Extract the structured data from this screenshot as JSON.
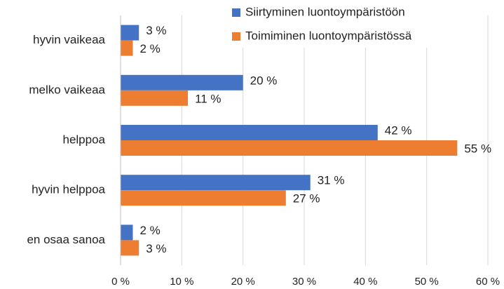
{
  "chart_data": {
    "type": "barh",
    "categories": [
      "hyvin vaikeaa",
      "melko vaikeaa",
      "helppoa",
      "hyvin helppoa",
      "en osaa sanoa"
    ],
    "series": [
      {
        "name": "Siirtyminen luontoympäristöön",
        "color": "#4472c4",
        "values": [
          3,
          20,
          42,
          31,
          2
        ],
        "value_labels": [
          "3 %",
          "20 %",
          "42 %",
          "31 %",
          "2 %"
        ]
      },
      {
        "name": "Toimiminen luontoympäristössä",
        "color": "#ed7d31",
        "values": [
          2,
          11,
          55,
          27,
          3
        ],
        "value_labels": [
          "2 %",
          "11 %",
          "55 %",
          "27 %",
          "3 %"
        ]
      }
    ],
    "xlim": [
      0,
      60
    ],
    "xticks": [
      {
        "value": 0,
        "label": "0 %"
      },
      {
        "value": 10,
        "label": "10 %"
      },
      {
        "value": 20,
        "label": "20 %"
      },
      {
        "value": 30,
        "label": "30 %"
      },
      {
        "value": 40,
        "label": "40 %"
      },
      {
        "value": 50,
        "label": "50 %"
      },
      {
        "value": 60,
        "label": "60 %"
      }
    ],
    "grid": true,
    "legend": "top-right"
  }
}
